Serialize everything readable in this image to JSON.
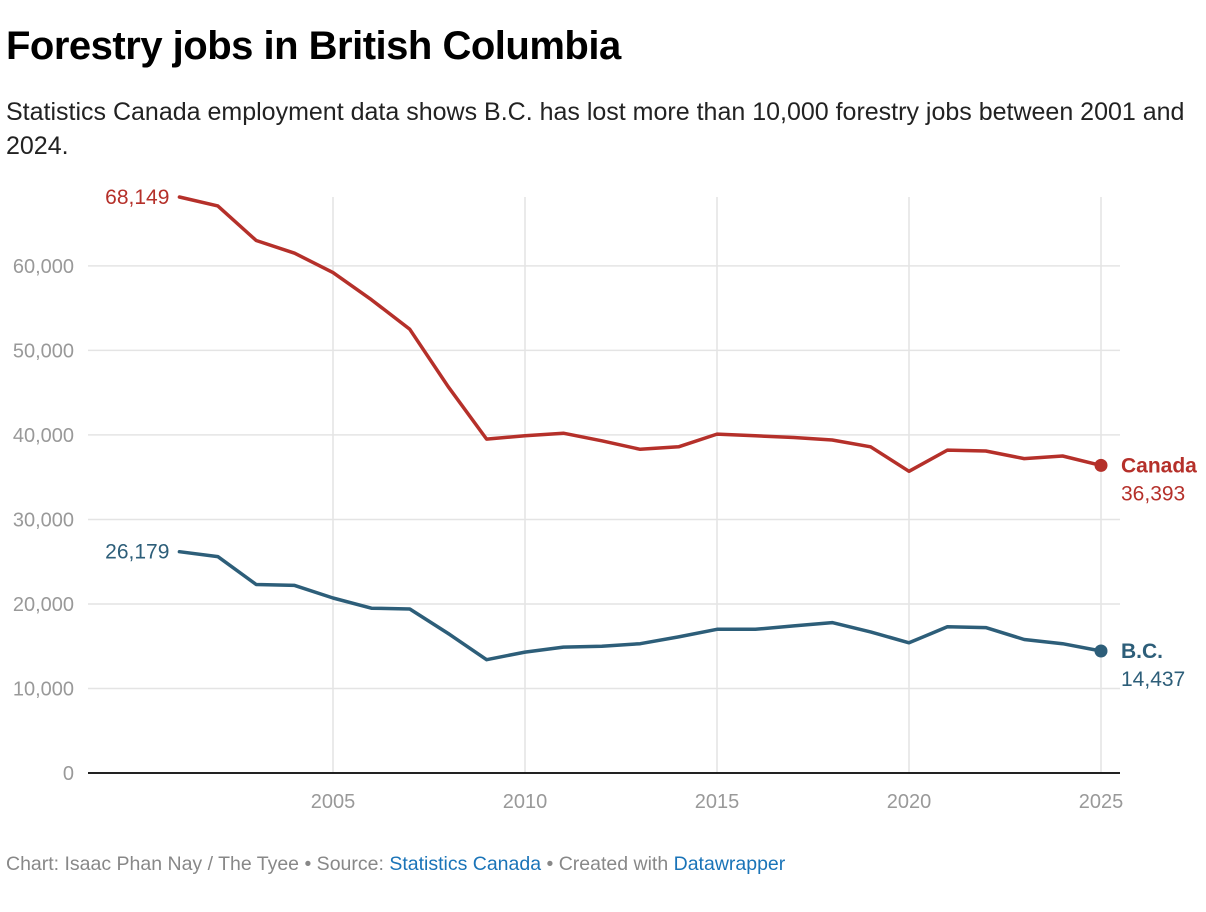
{
  "title": "Forestry jobs in British Columbia",
  "subtitle": "Statistics Canada employment data shows B.C. has lost more than 10,000 forestry jobs between 2001 and 2024.",
  "footer": {
    "prefix": "Chart: Isaac Phan Nay / The Tyee • Source: ",
    "source_link": "Statistics Canada",
    "middle": " • Created with ",
    "tool_link": "Datawrapper"
  },
  "colors": {
    "canada": "#b5302a",
    "bc": "#2d5e79",
    "grid": "#e4e4e4",
    "axis": "#222222",
    "tick": "#999999"
  },
  "chart_data": {
    "type": "line",
    "xlim": [
      2000,
      2025
    ],
    "ylim": [
      0,
      68149
    ],
    "x_ticks": [
      2005,
      2010,
      2015,
      2020,
      2025
    ],
    "y_ticks": [
      0,
      10000,
      20000,
      30000,
      40000,
      50000,
      60000
    ],
    "x_tick_labels": [
      "2005",
      "2010",
      "2015",
      "2020",
      "2025"
    ],
    "y_tick_labels": [
      "0",
      "10,000",
      "20,000",
      "30,000",
      "40,000",
      "50,000",
      "60,000"
    ],
    "grid": true,
    "x": [
      2001,
      2002,
      2003,
      2004,
      2005,
      2006,
      2007,
      2008,
      2009,
      2010,
      2011,
      2012,
      2013,
      2014,
      2015,
      2016,
      2017,
      2018,
      2019,
      2020,
      2021,
      2022,
      2023,
      2024,
      2025
    ],
    "series": [
      {
        "name": "Canada",
        "color": "#b5302a",
        "values": [
          68149,
          67100,
          63000,
          61500,
          59200,
          56000,
          52500,
          45700,
          39500,
          39900,
          40200,
          39300,
          38300,
          38600,
          40100,
          39900,
          39700,
          39400,
          38600,
          35700,
          38200,
          38100,
          37200,
          37500,
          36393
        ],
        "start_label": "68,149",
        "end_label": "36,393"
      },
      {
        "name": "B.C.",
        "color": "#2d5e79",
        "values": [
          26179,
          25600,
          22300,
          22200,
          20700,
          19500,
          19400,
          16500,
          13400,
          14300,
          14900,
          15000,
          15300,
          16100,
          17000,
          17000,
          17400,
          17800,
          16700,
          15400,
          17300,
          17200,
          15800,
          15300,
          14437
        ],
        "start_label": "26,179",
        "end_label": "14,437"
      }
    ]
  }
}
